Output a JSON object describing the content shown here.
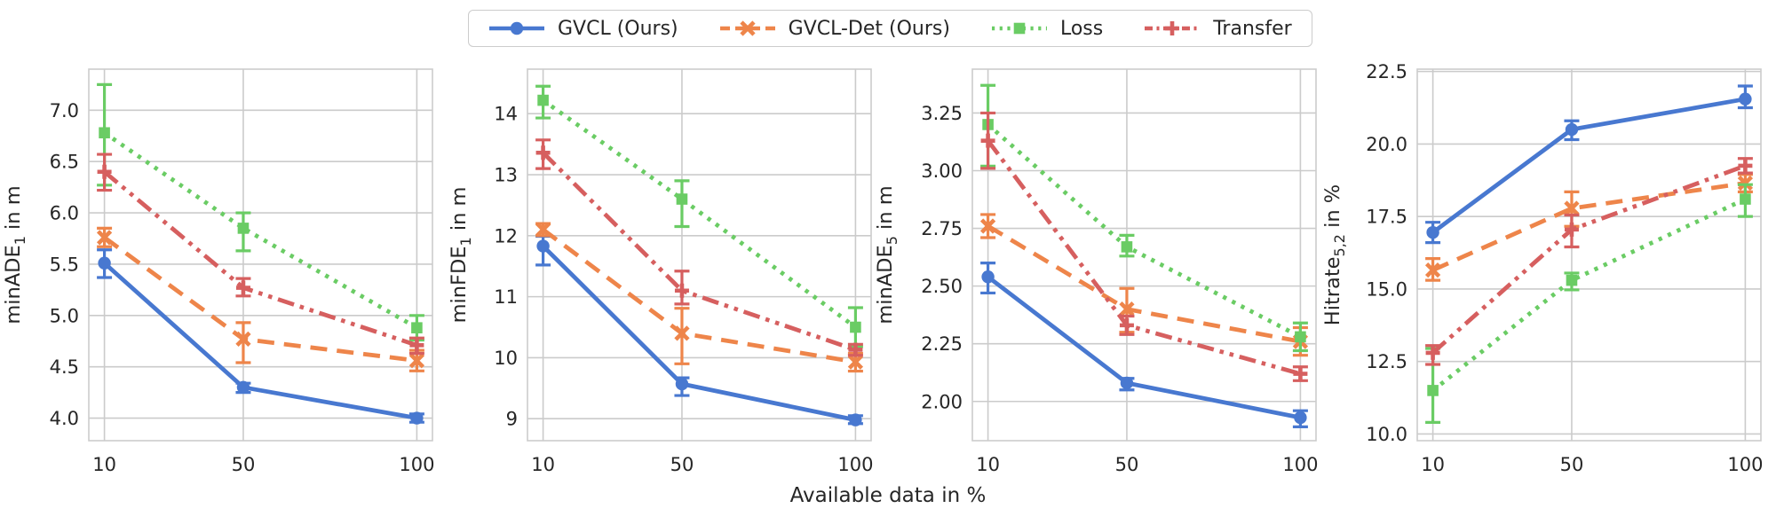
{
  "figure": {
    "xlabel": "Available data in %",
    "background": "#ffffff",
    "text_color": "#262626",
    "grid_color": "#cbcbcb",
    "spine_color": "#cccccc",
    "grid": true,
    "legend_position": "top-center"
  },
  "legend": {
    "items": [
      {
        "label": "GVCL (Ours)",
        "color": "#4878d0",
        "linestyle": "solid",
        "marker": "circle"
      },
      {
        "label": "GVCL-Det (Ours)",
        "color": "#ee854a",
        "linestyle": "dashed",
        "marker": "x"
      },
      {
        "label": "Loss",
        "color": "#6acc64",
        "linestyle": "dotted",
        "marker": "square"
      },
      {
        "label": "Transfer",
        "color": "#d65f5f",
        "linestyle": "dashdotdot",
        "marker": "plus"
      }
    ]
  },
  "chart_data": [
    {
      "type": "line",
      "ylabel": "minADE₁ in m",
      "ylabel_parts": [
        {
          "t": "minADE"
        },
        {
          "t": "1",
          "sub": true
        },
        {
          "t": " in m"
        }
      ],
      "x": [
        10,
        50,
        100
      ],
      "xtick_labels": [
        "10",
        "50",
        "100"
      ],
      "xlim": [
        5.5,
        104.5
      ],
      "ylim": [
        3.78,
        7.4
      ],
      "yticks": [
        4.0,
        4.5,
        5.0,
        5.5,
        6.0,
        6.5,
        7.0
      ],
      "ytick_labels": [
        "4.0",
        "4.5",
        "5.0",
        "5.5",
        "6.0",
        "6.5",
        "7.0"
      ],
      "series": [
        {
          "name": "GVCL (Ours)",
          "values": [
            5.51,
            4.3,
            4.0
          ],
          "err_lo": [
            5.37,
            4.25,
            3.96
          ],
          "err_hi": [
            5.64,
            4.34,
            4.04
          ]
        },
        {
          "name": "GVCL-Det (Ours)",
          "values": [
            5.76,
            4.77,
            4.56
          ],
          "err_lo": [
            5.67,
            4.54,
            4.46
          ],
          "err_hi": [
            5.85,
            4.93,
            4.66
          ]
        },
        {
          "name": "Loss",
          "values": [
            6.78,
            5.85,
            4.88
          ],
          "err_lo": [
            6.27,
            5.63,
            4.76
          ],
          "err_hi": [
            7.25,
            6.0,
            5.0
          ]
        },
        {
          "name": "Transfer",
          "values": [
            6.4,
            5.27,
            4.71
          ],
          "err_lo": [
            6.22,
            5.19,
            4.63
          ],
          "err_hi": [
            6.57,
            5.36,
            4.78
          ]
        }
      ]
    },
    {
      "type": "line",
      "ylabel": "minFDE₁ in m",
      "ylabel_parts": [
        {
          "t": "minFDE"
        },
        {
          "t": "1",
          "sub": true
        },
        {
          "t": " in m"
        }
      ],
      "x": [
        10,
        50,
        100
      ],
      "xtick_labels": [
        "10",
        "50",
        "100"
      ],
      "xlim": [
        5.5,
        104.5
      ],
      "ylim": [
        8.64,
        14.73
      ],
      "yticks": [
        9,
        10,
        11,
        12,
        13,
        14
      ],
      "ytick_labels": [
        "9",
        "10",
        "11",
        "12",
        "13",
        "14"
      ],
      "series": [
        {
          "name": "GVCL (Ours)",
          "values": [
            11.83,
            9.57,
            8.98
          ],
          "err_lo": [
            11.52,
            9.38,
            8.92
          ],
          "err_hi": [
            11.99,
            9.67,
            9.05
          ]
        },
        {
          "name": "GVCL-Det (Ours)",
          "values": [
            12.1,
            10.4,
            9.93
          ],
          "err_lo": [
            12.0,
            9.9,
            9.78
          ],
          "err_hi": [
            12.2,
            10.81,
            10.07
          ]
        },
        {
          "name": "Loss",
          "values": [
            14.22,
            12.6,
            10.5
          ],
          "err_lo": [
            13.93,
            12.15,
            10.18
          ],
          "err_hi": [
            14.45,
            12.9,
            10.82
          ]
        },
        {
          "name": "Transfer",
          "values": [
            13.36,
            11.1,
            10.13
          ],
          "err_lo": [
            13.1,
            10.88,
            10.04
          ],
          "err_hi": [
            13.57,
            11.42,
            10.22
          ]
        }
      ]
    },
    {
      "type": "line",
      "ylabel": "minADE₅ in m",
      "ylabel_parts": [
        {
          "t": "minADE"
        },
        {
          "t": "5",
          "sub": true
        },
        {
          "t": " in m"
        }
      ],
      "x": [
        10,
        50,
        100
      ],
      "xtick_labels": [
        "10",
        "50",
        "100"
      ],
      "xlim": [
        5.5,
        104.5
      ],
      "ylim": [
        1.83,
        3.44
      ],
      "yticks": [
        2.0,
        2.25,
        2.5,
        2.75,
        3.0,
        3.25
      ],
      "ytick_labels": [
        "2.00",
        "2.25",
        "2.50",
        "2.75",
        "3.00",
        "3.25"
      ],
      "series": [
        {
          "name": "GVCL (Ours)",
          "values": [
            2.54,
            2.08,
            1.93
          ],
          "err_lo": [
            2.47,
            2.05,
            1.89
          ],
          "err_hi": [
            2.6,
            2.1,
            1.96
          ]
        },
        {
          "name": "GVCL-Det (Ours)",
          "values": [
            2.76,
            2.4,
            2.26
          ],
          "err_lo": [
            2.71,
            2.3,
            2.2
          ],
          "err_hi": [
            2.81,
            2.49,
            2.32
          ]
        },
        {
          "name": "Loss",
          "values": [
            3.2,
            2.67,
            2.28
          ],
          "err_lo": [
            3.02,
            2.63,
            2.22
          ],
          "err_hi": [
            3.37,
            2.72,
            2.34
          ]
        },
        {
          "name": "Transfer",
          "values": [
            3.13,
            2.33,
            2.12
          ],
          "err_lo": [
            3.01,
            2.29,
            2.09
          ],
          "err_hi": [
            3.25,
            2.37,
            2.15
          ]
        }
      ]
    },
    {
      "type": "line",
      "ylabel": "Hitrate₅,₂ in %",
      "ylabel_parts": [
        {
          "t": "Hitrate"
        },
        {
          "t": "5,2",
          "sub": true
        },
        {
          "t": " in %"
        }
      ],
      "x": [
        10,
        50,
        100
      ],
      "xtick_labels": [
        "10",
        "50",
        "100"
      ],
      "xlim": [
        5.5,
        104.5
      ],
      "ylim": [
        9.77,
        22.58
      ],
      "yticks": [
        10.0,
        12.5,
        15.0,
        17.5,
        20.0,
        22.5
      ],
      "ytick_labels": [
        "10.0",
        "12.5",
        "15.0",
        "17.5",
        "20.0",
        "22.5"
      ],
      "series": [
        {
          "name": "GVCL (Ours)",
          "values": [
            16.95,
            20.5,
            21.55
          ],
          "err_lo": [
            16.6,
            20.15,
            21.25
          ],
          "err_hi": [
            17.3,
            20.8,
            22.0
          ]
        },
        {
          "name": "GVCL-Det (Ours)",
          "values": [
            15.65,
            17.78,
            18.65
          ],
          "err_lo": [
            15.3,
            17.16,
            18.35
          ],
          "err_hi": [
            16.05,
            18.35,
            18.95
          ]
        },
        {
          "name": "Loss",
          "values": [
            11.5,
            15.3,
            18.1
          ],
          "err_lo": [
            10.4,
            14.97,
            17.5
          ],
          "err_hi": [
            12.95,
            15.55,
            18.6
          ]
        },
        {
          "name": "Transfer",
          "values": [
            12.8,
            17.05,
            19.25
          ],
          "err_lo": [
            12.4,
            16.45,
            19.0
          ],
          "err_hi": [
            13.05,
            17.55,
            19.5
          ]
        }
      ]
    }
  ]
}
